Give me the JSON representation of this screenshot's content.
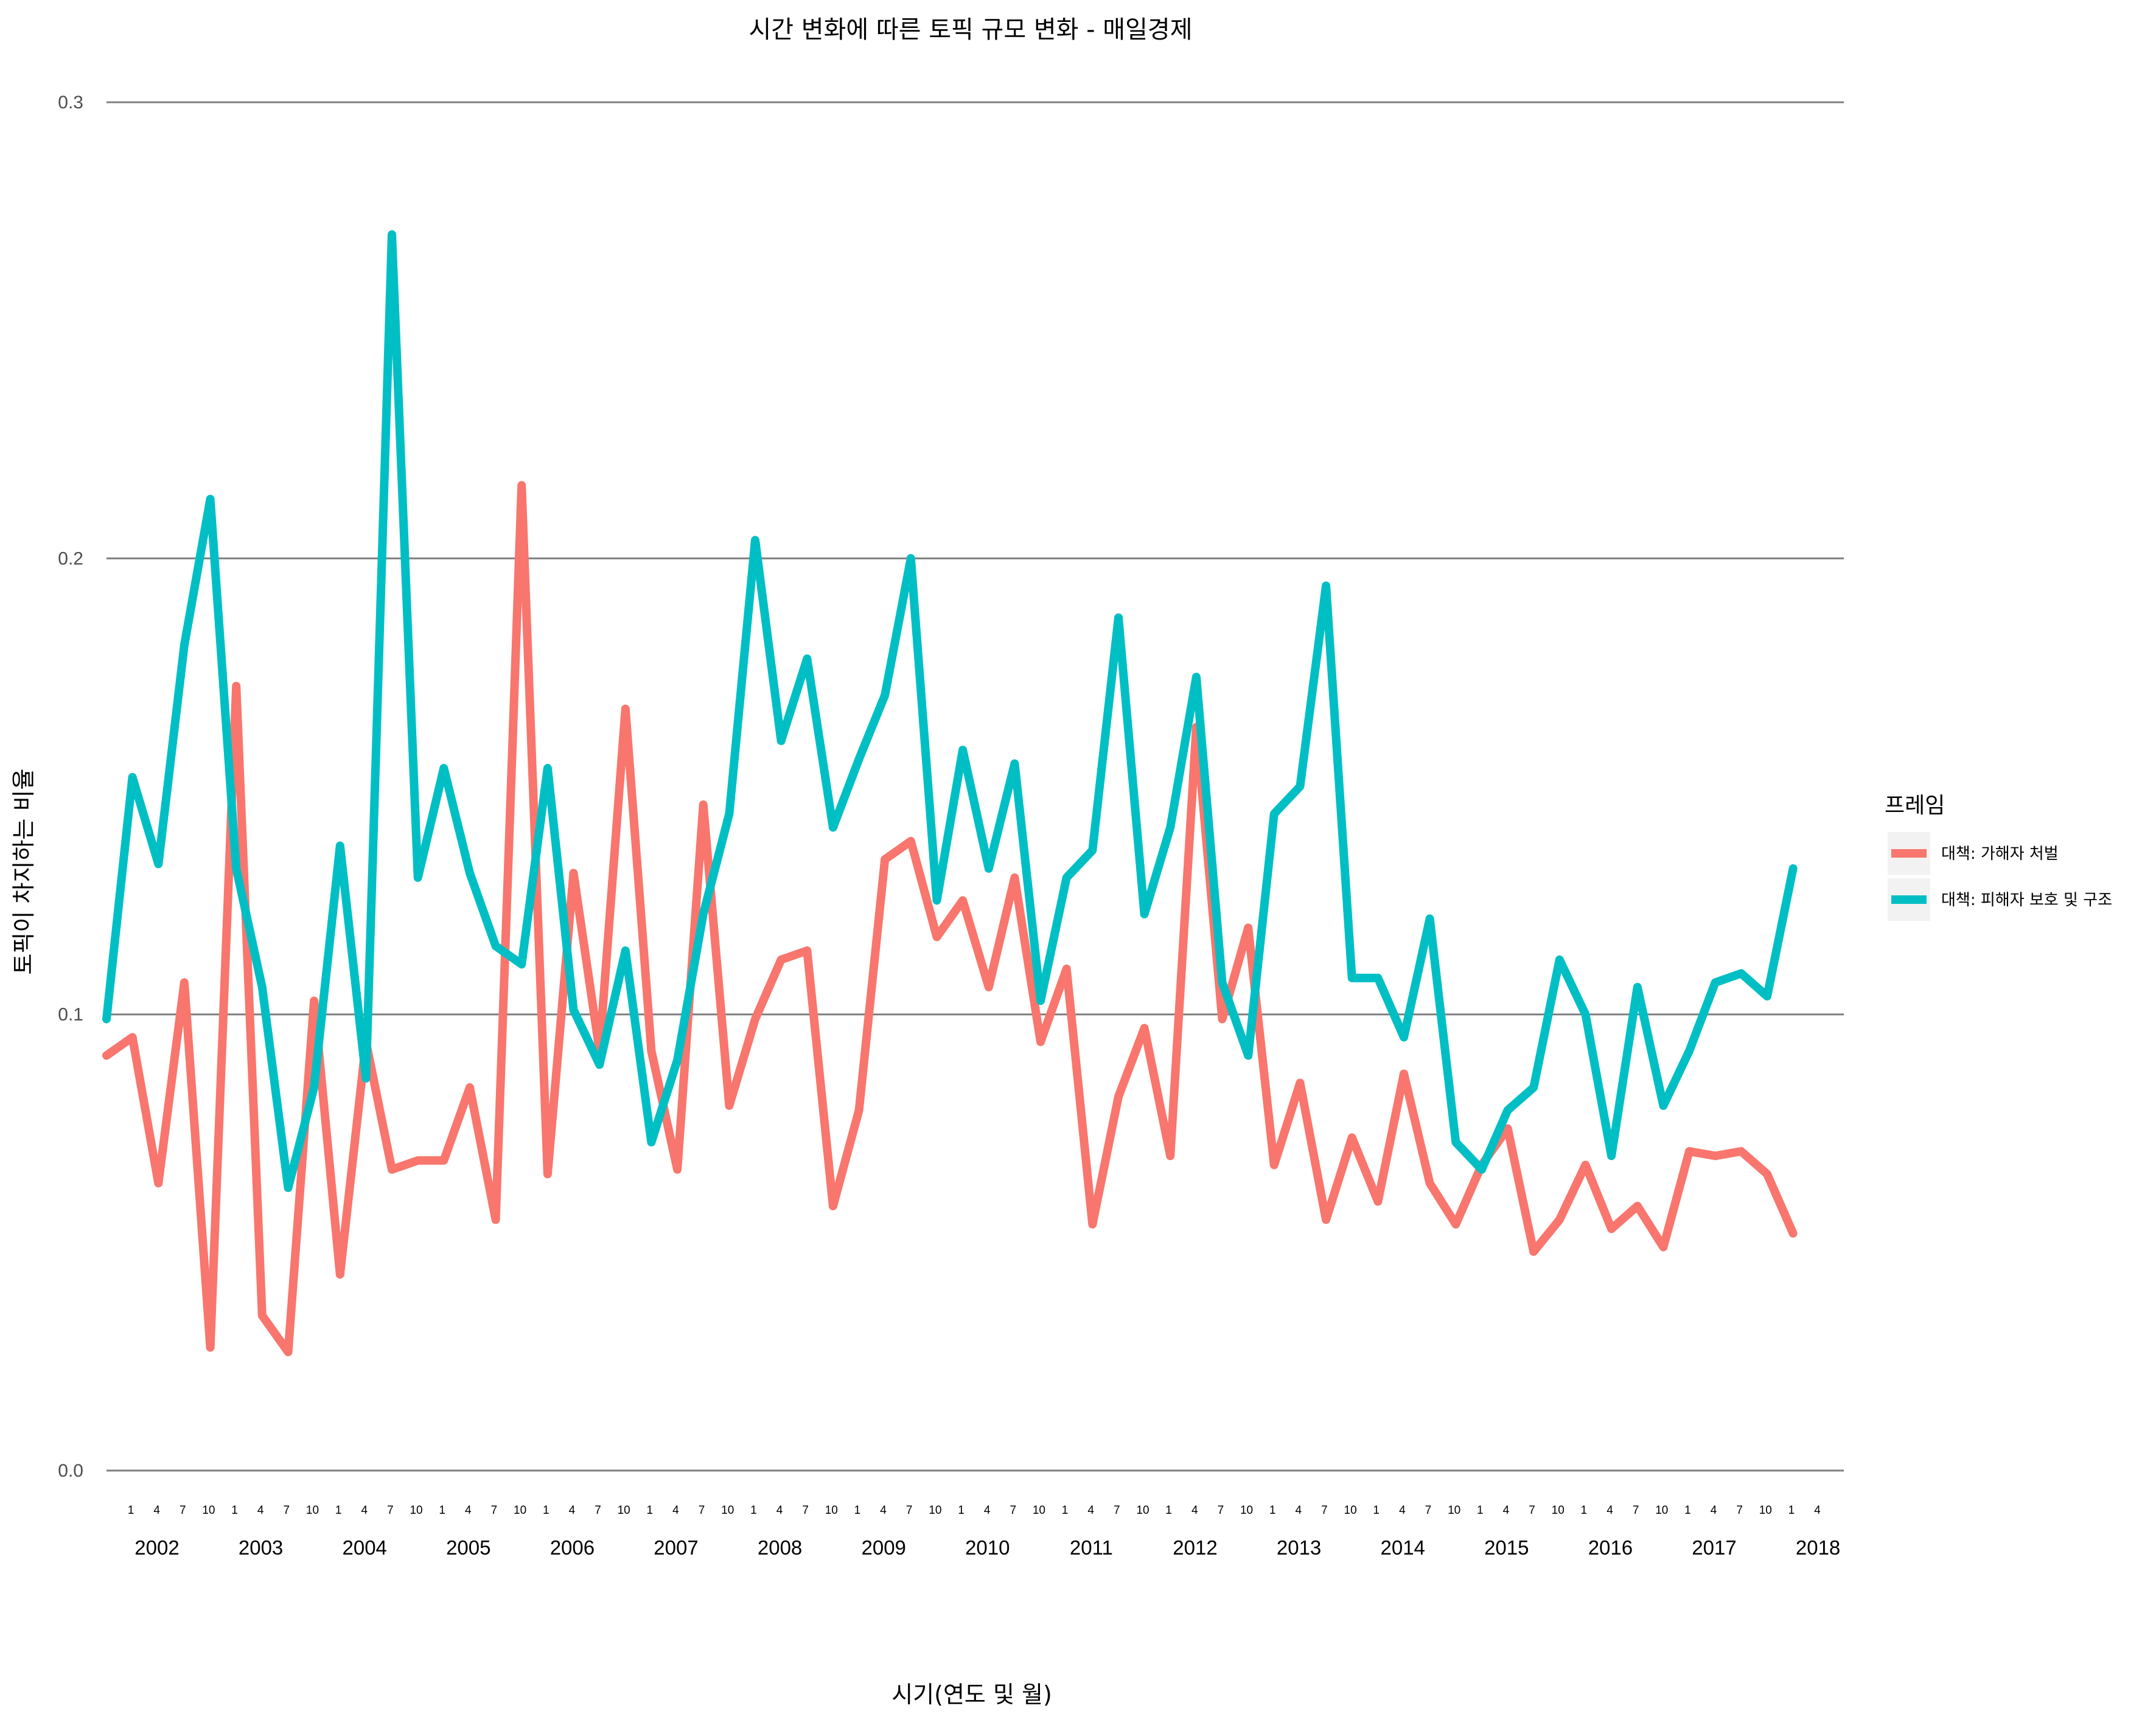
{
  "chart_data": {
    "type": "line",
    "title": "시간 변화에 따른 토픽 규모 변화 - 매일경제",
    "xlabel": "시기(연도 및 월)",
    "ylabel": "토픽이 차지하는 비율",
    "ylim": [
      0,
      0.3
    ],
    "yticks": [
      "0.0",
      "0.1",
      "0.2",
      "0.3"
    ],
    "grid": "horizontal major only",
    "legend": {
      "title": "프레임",
      "position": "right"
    },
    "months": [
      "1",
      "4",
      "7",
      "10"
    ],
    "year_labels": [
      "2002",
      "2003",
      "2004",
      "2005",
      "2006",
      "2007",
      "2008",
      "2009",
      "2010",
      "2011",
      "2012",
      "2013",
      "2014",
      "2015",
      "2016",
      "2017",
      "2018"
    ],
    "x": [
      "2002-01",
      "2002-04",
      "2002-07",
      "2002-10",
      "2003-01",
      "2003-04",
      "2003-07",
      "2003-10",
      "2004-01",
      "2004-04",
      "2004-07",
      "2004-10",
      "2005-01",
      "2005-04",
      "2005-07",
      "2005-10",
      "2006-01",
      "2006-04",
      "2006-07",
      "2006-10",
      "2007-01",
      "2007-04",
      "2007-07",
      "2007-10",
      "2008-01",
      "2008-04",
      "2008-07",
      "2008-10",
      "2009-01",
      "2009-04",
      "2009-07",
      "2009-10",
      "2010-01",
      "2010-04",
      "2010-07",
      "2010-10",
      "2011-01",
      "2011-04",
      "2011-07",
      "2011-10",
      "2012-01",
      "2012-04",
      "2012-07",
      "2012-10",
      "2013-01",
      "2013-04",
      "2013-07",
      "2013-10",
      "2014-01",
      "2014-04",
      "2014-07",
      "2014-10",
      "2015-01",
      "2015-04",
      "2015-07",
      "2015-10",
      "2016-01",
      "2016-04",
      "2016-07",
      "2016-10",
      "2017-01",
      "2017-04",
      "2017-07",
      "2017-10",
      "2018-01",
      "2018-04"
    ],
    "series": [
      {
        "name": "대책: 가해자 처벌",
        "color": "#F8766D",
        "values": [
          0.091,
          0.095,
          0.063,
          0.107,
          0.027,
          0.172,
          0.034,
          0.026,
          0.103,
          0.043,
          0.094,
          0.066,
          0.068,
          0.068,
          0.084,
          0.055,
          0.216,
          0.065,
          0.131,
          0.092,
          0.167,
          0.092,
          0.066,
          0.146,
          0.08,
          0.099,
          0.112,
          0.114,
          0.058,
          0.079,
          0.134,
          0.138,
          0.117,
          0.125,
          0.106,
          0.13,
          0.094,
          0.11,
          0.054,
          0.082,
          0.097,
          0.069,
          0.163,
          0.099,
          0.119,
          0.067,
          0.085,
          0.055,
          0.073,
          0.059,
          0.087,
          0.063,
          0.054,
          0.067,
          0.075,
          0.048,
          0.055,
          0.067,
          0.053,
          0.058,
          0.049,
          0.07,
          0.069,
          0.07,
          0.065,
          0.052
        ]
      },
      {
        "name": "대책: 피해자 보호 및 구조",
        "color": "#00BFC4",
        "values": [
          0.099,
          0.152,
          0.133,
          0.181,
          0.213,
          0.132,
          0.106,
          0.062,
          0.084,
          0.137,
          0.086,
          0.271,
          0.13,
          0.154,
          0.131,
          0.115,
          0.111,
          0.154,
          0.101,
          0.089,
          0.114,
          0.072,
          0.09,
          0.122,
          0.144,
          0.204,
          0.16,
          0.178,
          0.141,
          0.156,
          0.17,
          0.2,
          0.125,
          0.158,
          0.132,
          0.155,
          0.103,
          0.13,
          0.136,
          0.187,
          0.122,
          0.141,
          0.174,
          0.107,
          0.091,
          0.144,
          0.15,
          0.194,
          0.108,
          0.108,
          0.095,
          0.121,
          0.072,
          0.066,
          0.079,
          0.084,
          0.112,
          0.1,
          0.069,
          0.106,
          0.08,
          0.092,
          0.107,
          0.109,
          0.104,
          0.132
        ]
      }
    ]
  }
}
